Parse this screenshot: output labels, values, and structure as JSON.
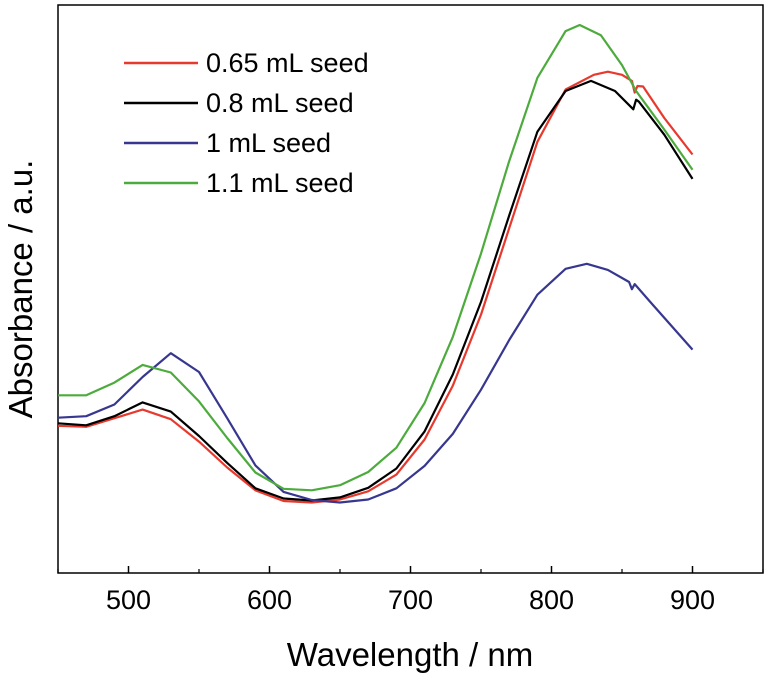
{
  "chart_data": {
    "type": "line",
    "title": "",
    "xlabel": "Wavelength / nm",
    "ylabel": "Absorbance / a.u.",
    "xlim": [
      450,
      950
    ],
    "ylim": [
      0,
      1
    ],
    "xticks": [
      500,
      600,
      700,
      800,
      900
    ],
    "y_tick_labels": false,
    "grid": false,
    "legend": {
      "placement": "top-left"
    },
    "series": [
      {
        "name": "0.65 mL seed",
        "color": "#e8392e",
        "points": [
          [
            450,
            0.211
          ],
          [
            470,
            0.209
          ],
          [
            490,
            0.226
          ],
          [
            510,
            0.243
          ],
          [
            530,
            0.224
          ],
          [
            550,
            0.18
          ],
          [
            570,
            0.129
          ],
          [
            590,
            0.084
          ],
          [
            610,
            0.063
          ],
          [
            630,
            0.06
          ],
          [
            650,
            0.066
          ],
          [
            670,
            0.082
          ],
          [
            690,
            0.115
          ],
          [
            710,
            0.184
          ],
          [
            730,
            0.29
          ],
          [
            750,
            0.43
          ],
          [
            770,
            0.6
          ],
          [
            790,
            0.77
          ],
          [
            810,
            0.873
          ],
          [
            830,
            0.902
          ],
          [
            840,
            0.908
          ],
          [
            850,
            0.902
          ],
          [
            857,
            0.89
          ],
          [
            859,
            0.867
          ],
          [
            861,
            0.88
          ],
          [
            865,
            0.879
          ],
          [
            880,
            0.817
          ],
          [
            900,
            0.745
          ]
        ]
      },
      {
        "name": "0.8 mL seed",
        "color": "#000000",
        "points": [
          [
            450,
            0.216
          ],
          [
            470,
            0.212
          ],
          [
            490,
            0.23
          ],
          [
            510,
            0.257
          ],
          [
            530,
            0.239
          ],
          [
            550,
            0.191
          ],
          [
            570,
            0.138
          ],
          [
            590,
            0.088
          ],
          [
            610,
            0.068
          ],
          [
            630,
            0.064
          ],
          [
            650,
            0.07
          ],
          [
            670,
            0.089
          ],
          [
            690,
            0.127
          ],
          [
            710,
            0.2
          ],
          [
            730,
            0.312
          ],
          [
            750,
            0.455
          ],
          [
            770,
            0.625
          ],
          [
            790,
            0.79
          ],
          [
            810,
            0.87
          ],
          [
            828,
            0.89
          ],
          [
            845,
            0.87
          ],
          [
            858,
            0.834
          ],
          [
            860,
            0.853
          ],
          [
            862,
            0.849
          ],
          [
            880,
            0.784
          ],
          [
            900,
            0.697
          ]
        ]
      },
      {
        "name": "1 mL seed",
        "color": "#37378f",
        "points": [
          [
            450,
            0.227
          ],
          [
            470,
            0.23
          ],
          [
            490,
            0.253
          ],
          [
            510,
            0.307
          ],
          [
            530,
            0.354
          ],
          [
            550,
            0.317
          ],
          [
            570,
            0.226
          ],
          [
            590,
            0.133
          ],
          [
            610,
            0.081
          ],
          [
            630,
            0.065
          ],
          [
            650,
            0.06
          ],
          [
            670,
            0.066
          ],
          [
            690,
            0.088
          ],
          [
            710,
            0.132
          ],
          [
            730,
            0.195
          ],
          [
            750,
            0.282
          ],
          [
            770,
            0.38
          ],
          [
            790,
            0.469
          ],
          [
            810,
            0.52
          ],
          [
            825,
            0.53
          ],
          [
            840,
            0.518
          ],
          [
            855,
            0.494
          ],
          [
            857,
            0.48
          ],
          [
            859,
            0.49
          ],
          [
            870,
            0.455
          ],
          [
            900,
            0.361
          ]
        ]
      },
      {
        "name": "1.1 mL seed",
        "color": "#4dab3d",
        "points": [
          [
            450,
            0.271
          ],
          [
            470,
            0.271
          ],
          [
            490,
            0.296
          ],
          [
            510,
            0.331
          ],
          [
            530,
            0.316
          ],
          [
            550,
            0.259
          ],
          [
            570,
            0.187
          ],
          [
            590,
            0.119
          ],
          [
            610,
            0.087
          ],
          [
            630,
            0.084
          ],
          [
            650,
            0.094
          ],
          [
            670,
            0.12
          ],
          [
            690,
            0.168
          ],
          [
            710,
            0.256
          ],
          [
            730,
            0.386
          ],
          [
            750,
            0.55
          ],
          [
            770,
            0.732
          ],
          [
            790,
            0.896
          ],
          [
            810,
            0.988
          ],
          [
            820,
            1.0
          ],
          [
            835,
            0.98
          ],
          [
            850,
            0.921
          ],
          [
            860,
            0.87
          ],
          [
            870,
            0.832
          ],
          [
            880,
            0.794
          ],
          [
            900,
            0.715
          ]
        ]
      }
    ]
  }
}
